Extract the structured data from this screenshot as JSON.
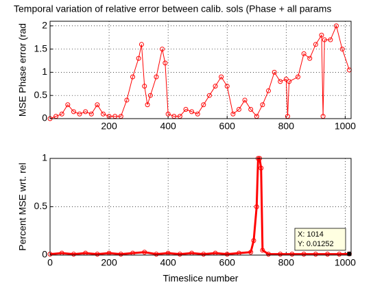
{
  "chart_data": [
    {
      "type": "line",
      "title": "Temporal variation of relative error between calib. sols (Phase + all params",
      "y_label": "MSE Phase error (rad",
      "x": [
        0,
        20,
        40,
        60,
        80,
        100,
        120,
        140,
        160,
        180,
        200,
        220,
        240,
        260,
        280,
        300,
        310,
        320,
        330,
        340,
        360,
        380,
        390,
        400,
        420,
        440,
        460,
        480,
        500,
        520,
        540,
        560,
        580,
        600,
        620,
        640,
        660,
        680,
        700,
        720,
        740,
        760,
        780,
        800,
        805,
        810,
        840,
        860,
        880,
        900,
        920,
        925,
        930,
        950,
        970,
        990,
        1014
      ],
      "series": [
        {
          "color": "#ff0000",
          "values": [
            0,
            0.05,
            0.1,
            0.3,
            0.15,
            0.1,
            0.15,
            0.1,
            0.3,
            0.1,
            0.05,
            0.05,
            0.05,
            0.4,
            0.9,
            1.3,
            1.6,
            0.7,
            0.3,
            0.5,
            0.9,
            1.5,
            1.2,
            0.1,
            0.05,
            0.05,
            0.2,
            0.15,
            0.1,
            0.3,
            0.5,
            0.7,
            0.9,
            0.7,
            0.1,
            0.2,
            0.4,
            0.2,
            0.05,
            0.3,
            0.6,
            1.0,
            0.8,
            0.85,
            0.05,
            0.8,
            0.9,
            1.4,
            1.3,
            1.6,
            1.8,
            0.05,
            1.7,
            1.7,
            2.0,
            1.5,
            1.05
          ]
        }
      ],
      "xlim": [
        0,
        1020
      ],
      "ylim": [
        0,
        2.1
      ],
      "xticks": [
        200,
        400,
        600,
        800,
        1000
      ],
      "yticks": [
        0,
        0.5,
        1,
        1.5,
        2
      ],
      "grid": true
    },
    {
      "type": "line",
      "y_label": "Percent MSE wrt. rel",
      "x_label": "Timeslice number",
      "x": [
        0,
        40,
        80,
        120,
        160,
        200,
        240,
        280,
        320,
        360,
        400,
        440,
        480,
        520,
        560,
        600,
        640,
        680,
        690,
        700,
        705,
        710,
        715,
        720,
        740,
        780,
        820,
        860,
        900,
        940,
        980,
        1014
      ],
      "series": [
        {
          "color": "#ff0000",
          "values": [
            0.01,
            0.02,
            0.01,
            0.02,
            0.01,
            0.02,
            0.01,
            0.02,
            0.03,
            0.01,
            0.02,
            0.01,
            0.02,
            0.01,
            0.02,
            0.01,
            0.02,
            0.03,
            0.15,
            0.5,
            1,
            1,
            0.9,
            0.05,
            0.01,
            0.01,
            0.01,
            0.01,
            0.01,
            0.01,
            0.01,
            0.01252
          ]
        }
      ],
      "xlim": [
        0,
        1020
      ],
      "ylim": [
        0,
        1
      ],
      "xticks": [
        0,
        200,
        400,
        600,
        800,
        1000
      ],
      "yticks": [
        0,
        0.5,
        1
      ],
      "grid": true,
      "annotations": [
        "X: 1014",
        "Y: 0.01252"
      ]
    }
  ]
}
